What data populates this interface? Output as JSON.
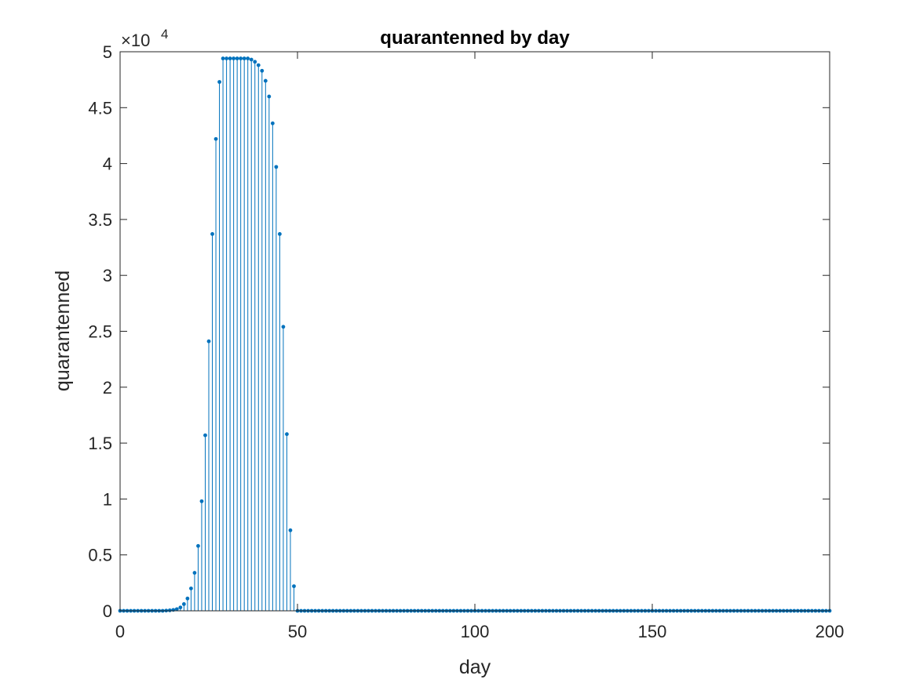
{
  "chart_data": {
    "type": "stem",
    "title": "quarantenned by day",
    "xlabel": "day",
    "ylabel": "quarantenned",
    "xlim": [
      0,
      200
    ],
    "ylim": [
      0,
      50000
    ],
    "xticks": [
      0,
      50,
      100,
      150,
      200
    ],
    "xtick_labels": [
      "0",
      "50",
      "100",
      "150",
      "200"
    ],
    "yticks": [
      0,
      5000,
      10000,
      15000,
      20000,
      25000,
      30000,
      35000,
      40000,
      45000,
      50000
    ],
    "ytick_labels": [
      "0",
      "0.5",
      "1",
      "1.5",
      "2",
      "2.5",
      "3",
      "3.5",
      "4",
      "4.5",
      "5"
    ],
    "y_multiplier_base": "×10",
    "y_multiplier_exponent": "4",
    "grid": false,
    "series_color": "#0072BD",
    "x_start": 0,
    "x_step": 1,
    "values": [
      0,
      0,
      0,
      0,
      0,
      0,
      0,
      0,
      0,
      0,
      0,
      0,
      0,
      20,
      40,
      80,
      150,
      300,
      600,
      1100,
      2000,
      3400,
      5800,
      9800,
      15700,
      24100,
      33700,
      42200,
      47300,
      49400,
      49400,
      49400,
      49400,
      49400,
      49400,
      49400,
      49400,
      49300,
      49100,
      48800,
      48300,
      47400,
      46000,
      43600,
      39700,
      33700,
      25400,
      15800,
      7200,
      2200,
      0,
      0,
      0,
      0,
      0,
      0,
      0,
      0,
      0,
      0,
      0,
      0,
      0,
      0,
      0,
      0,
      0,
      0,
      0,
      0,
      0,
      0,
      0,
      0,
      0,
      0,
      0,
      0,
      0,
      0,
      0,
      0,
      0,
      0,
      0,
      0,
      0,
      0,
      0,
      0,
      0,
      0,
      0,
      0,
      0,
      0,
      0,
      0,
      0,
      0,
      0,
      0,
      0,
      0,
      0,
      0,
      0,
      0,
      0,
      0,
      0,
      0,
      0,
      0,
      0,
      0,
      0,
      0,
      0,
      0,
      0,
      0,
      0,
      0,
      0,
      0,
      0,
      0,
      0,
      0,
      0,
      0,
      0,
      0,
      0,
      0,
      0,
      0,
      0,
      0,
      0,
      0,
      0,
      0,
      0,
      0,
      0,
      0,
      0,
      0,
      0,
      0,
      0,
      0,
      0,
      0,
      0,
      0,
      0,
      0,
      0,
      0,
      0,
      0,
      0,
      0,
      0,
      0,
      0,
      0,
      0,
      0,
      0,
      0,
      0,
      0,
      0,
      0,
      0,
      0,
      0,
      0,
      0,
      0,
      0,
      0,
      0,
      0,
      0,
      0,
      0,
      0,
      0,
      0,
      0,
      0,
      0,
      0,
      0,
      0,
      0
    ]
  }
}
